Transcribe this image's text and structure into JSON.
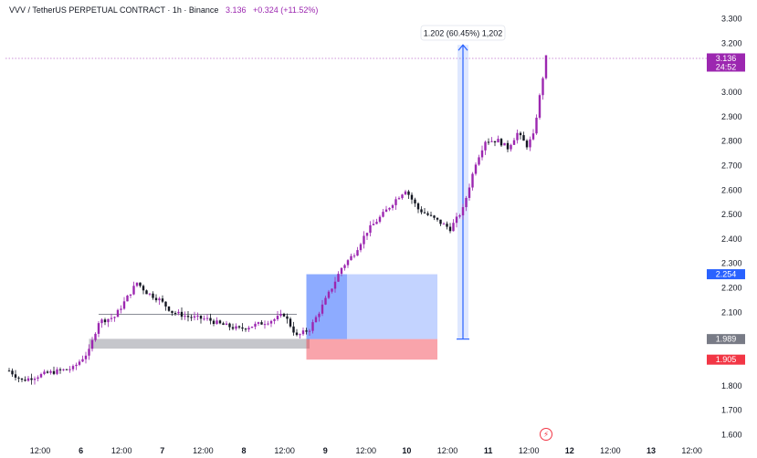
{
  "header": {
    "symbol": "VVV / TetherUS PERPETUAL CONTRACT · 1h · Binance",
    "price": "3.136",
    "change": "+0.324 (+11.52%)"
  },
  "price_axis": {
    "ticks": [
      "3.300",
      "3.200",
      "3.000",
      "2.900",
      "2.800",
      "2.700",
      "2.600",
      "2.500",
      "2.400",
      "2.300",
      "2.200",
      "2.100",
      "1.800",
      "1.700",
      "1.600"
    ],
    "ylim": [
      1.55,
      3.35
    ]
  },
  "time_axis": {
    "ticks": [
      "12:00",
      "6",
      "12:00",
      "7",
      "12:00",
      "8",
      "12:00",
      "9",
      "12:00",
      "10",
      "12:00",
      "11",
      "12:00",
      "12",
      "12:00",
      "13",
      "12:00"
    ]
  },
  "badges": [
    {
      "id": "last",
      "value": 3.136,
      "line1": "3.136",
      "line2": "24:52",
      "color": "#9c27b0"
    },
    {
      "id": "target",
      "value": 2.254,
      "line1": "2.254",
      "color": "#2962ff"
    },
    {
      "id": "entry",
      "value": 1.989,
      "line1": "1.989",
      "color": "#787b86"
    },
    {
      "id": "stop",
      "value": 1.905,
      "line1": "1.905",
      "color": "#f23645"
    }
  ],
  "measure_label": "1.202 (60.45%) 1,202",
  "alert_icon": "lightning-bolt-icon",
  "colors": {
    "up": "#9c27b0",
    "down": "#131722",
    "long_target": "#2962ff",
    "stop": "#f23645",
    "range": "#787b86"
  },
  "chart_data": {
    "type": "candlestick",
    "title": "VVV / TetherUS PERPETUAL CONTRACT · 1h · Binance",
    "ylim": [
      1.55,
      3.35
    ],
    "last_price": 3.136,
    "anchors": [
      [
        0,
        1.86
      ],
      [
        4,
        1.82
      ],
      [
        12,
        1.85
      ],
      [
        20,
        1.87
      ],
      [
        25,
        1.94
      ],
      [
        28,
        2.06
      ],
      [
        33,
        2.08
      ],
      [
        37,
        2.16
      ],
      [
        40,
        2.22
      ],
      [
        43,
        2.18
      ],
      [
        47,
        2.15
      ],
      [
        51,
        2.1
      ],
      [
        56,
        2.08
      ],
      [
        62,
        2.07
      ],
      [
        66,
        2.05
      ],
      [
        72,
        2.03
      ],
      [
        78,
        2.05
      ],
      [
        83,
        2.07
      ],
      [
        86,
        2.09
      ],
      [
        90,
        2.0
      ],
      [
        94,
        2.03
      ],
      [
        97,
        2.1
      ],
      [
        101,
        2.2
      ],
      [
        104,
        2.28
      ],
      [
        108,
        2.34
      ],
      [
        112,
        2.43
      ],
      [
        117,
        2.5
      ],
      [
        121,
        2.56
      ],
      [
        124,
        2.6
      ],
      [
        128,
        2.52
      ],
      [
        133,
        2.48
      ],
      [
        138,
        2.44
      ],
      [
        142,
        2.52
      ],
      [
        146,
        2.71
      ],
      [
        149,
        2.8
      ],
      [
        153,
        2.8
      ],
      [
        156,
        2.77
      ],
      [
        159,
        2.83
      ],
      [
        162,
        2.78
      ],
      [
        164,
        2.82
      ],
      [
        166,
        2.98
      ],
      [
        168,
        3.14
      ]
    ],
    "annotations": {
      "range_box": {
        "x0": 25,
        "x1": 94,
        "y0": 1.99,
        "y1": 2.09
      },
      "long_position": {
        "x0": 93,
        "x1": 134,
        "entry": 1.989,
        "target": 2.254,
        "stop": 1.905
      },
      "measure": {
        "x": 142,
        "y0": 1.989,
        "y1": 3.191,
        "label": "1.202 (60.45%) 1,202"
      }
    }
  }
}
